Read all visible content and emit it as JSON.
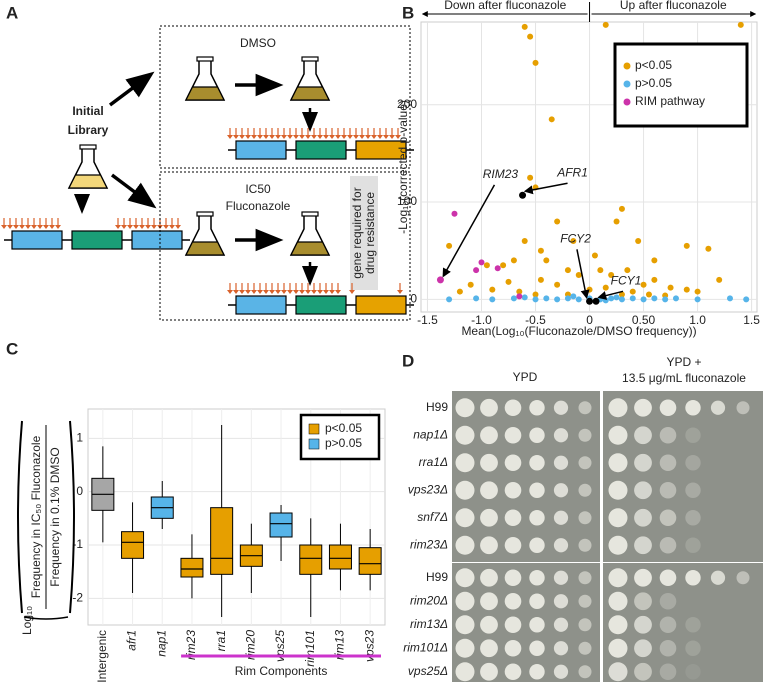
{
  "panel_labels": {
    "a": "A",
    "b": "B",
    "c": "C",
    "d": "D"
  },
  "panel_a": {
    "initial_library": [
      "Initial",
      "Library"
    ],
    "dmso": "DMSO",
    "ic50": [
      "IC50",
      "Fluconazole"
    ],
    "gene_note": [
      "gene required for",
      "drug resistance"
    ]
  },
  "chart_data": [
    {
      "type": "scatter",
      "xlabel": "Mean(Log₁₀(Fluconazole/DMSO frequency))",
      "ylabel": "-Log₁₀(corrected p-value)",
      "direction_labels": [
        "Down after fluconazole",
        "Up after fluconazole"
      ],
      "xlim": [
        -1.56,
        1.55
      ],
      "ylim": [
        -13,
        285
      ],
      "xticks": [
        -1.5,
        {
          "value": -1,
          "label": "-1.0"
        },
        -0.5,
        0,
        {
          "value": 0.5,
          "label": "0.50"
        },
        {
          "value": 1,
          "label": "1.0"
        },
        1.5
      ],
      "yticks": [
        0,
        100,
        200
      ],
      "grid": true,
      "legend": "top-right",
      "series": [
        {
          "name": "p<0.05",
          "color": "#e69f00",
          "x": [
            -0.6,
            -0.55,
            -0.5,
            -0.35,
            -0.55,
            -0.5,
            -0.3,
            0.3,
            0.25,
            0.9,
            1.1,
            -1.3,
            -0.95,
            -0.8,
            -0.7,
            -0.6,
            -0.45,
            -0.4,
            -0.2,
            -0.1,
            0.1,
            0.2,
            0.35,
            0.5,
            0.6,
            0.75,
            0.9,
            1.0,
            1.2,
            -1.1,
            -1.2,
            -0.9,
            -0.75,
            -0.3,
            0.0,
            0.15,
            0.4,
            -0.65,
            -0.5,
            -0.2,
            0.3,
            0.7,
            0.45,
            0.6,
            1.4,
            0.15,
            -0.45,
            0.05,
            -0.15,
            0.55
          ],
          "values": [
            280,
            270,
            243,
            185,
            125,
            115,
            80,
            93,
            80,
            55,
            52,
            55,
            35,
            35,
            40,
            60,
            50,
            40,
            30,
            25,
            30,
            25,
            30,
            15,
            20,
            12,
            10,
            8,
            20,
            15,
            8,
            10,
            18,
            15,
            10,
            12,
            8,
            8,
            5,
            5,
            5,
            4,
            60,
            40,
            282,
            282,
            20,
            45,
            60,
            5
          ]
        },
        {
          "name": "p>0.05",
          "color": "#56b4e9",
          "x": [
            -1.3,
            -1.05,
            -0.9,
            -0.7,
            -0.5,
            -0.4,
            -0.3,
            -0.2,
            -0.1,
            0.0,
            0.1,
            0.2,
            0.3,
            0.4,
            0.5,
            0.6,
            0.7,
            0.8,
            1.0,
            1.3,
            1.45,
            -0.6,
            0.25,
            -0.15,
            0.15
          ],
          "values": [
            0,
            1,
            0,
            1,
            0,
            1,
            0,
            1,
            0,
            1,
            0,
            1,
            0,
            1,
            0,
            1,
            0,
            1,
            0,
            1,
            0,
            2,
            2,
            3,
            -1
          ]
        },
        {
          "name": "RIM pathway",
          "color": "#cc33aa",
          "x": [
            -1.25,
            -1.05,
            -1.0,
            -0.85,
            -0.65
          ],
          "values": [
            88,
            30,
            38,
            32,
            3
          ]
        }
      ],
      "annotations": [
        {
          "text": "RIM23",
          "x": -1.38,
          "y": 20,
          "color": "#cc33aa"
        },
        {
          "text": "AFR1",
          "x": -0.62,
          "y": 107,
          "color": "#000000"
        },
        {
          "text": "FCY2",
          "x": 0.0,
          "y": -2,
          "color": "#000000"
        },
        {
          "text": "FCY1",
          "x": 0.06,
          "y": -2,
          "color": "#000000"
        }
      ]
    },
    {
      "type": "box",
      "ylabel": {
        "prefix": "Log₁₀",
        "numerator": "Frequency in IC₅₀ Fluconazole",
        "denominator": "Frequency in 0.1% DMSO"
      },
      "categories": [
        "Intergenic",
        "afr1",
        "nap1",
        "rim23",
        "rra1",
        "rim20",
        "vps25",
        "rim101",
        "rim13",
        "vps23"
      ],
      "colors": [
        "#a6a6a6",
        "#e69f00",
        "#56b4e9",
        "#e69f00",
        "#e69f00",
        "#e69f00",
        "#56b4e9",
        "#e69f00",
        "#e69f00",
        "#e69f00"
      ],
      "whisker_low": [
        -0.95,
        -1.9,
        -0.7,
        -2.0,
        -2.35,
        -1.9,
        -1.3,
        -2.35,
        -1.85,
        -1.85
      ],
      "q1": [
        -0.35,
        -1.25,
        -0.5,
        -1.6,
        -1.55,
        -1.4,
        -0.85,
        -1.55,
        -1.45,
        -1.55
      ],
      "median": [
        -0.05,
        -0.95,
        -0.3,
        -1.45,
        -1.25,
        -1.2,
        -0.6,
        -1.25,
        -1.25,
        -1.35
      ],
      "q3": [
        0.25,
        -0.75,
        -0.1,
        -1.25,
        -0.3,
        -1.0,
        -0.4,
        -1.0,
        -1.0,
        -1.05
      ],
      "whisker_high": [
        0.85,
        -0.2,
        0.2,
        -0.8,
        1.25,
        -0.6,
        -0.25,
        -0.5,
        -0.6,
        -0.7
      ],
      "ylim": [
        -2.5,
        1.55
      ],
      "yticks": [
        -2,
        -1,
        0,
        1
      ],
      "grid": true,
      "legend": "top-right",
      "legend_entries": [
        {
          "name": "p<0.05",
          "color": "#e69f00"
        },
        {
          "name": "p>0.05",
          "color": "#56b4e9"
        }
      ],
      "group": {
        "label": "Rim Components",
        "from": 3,
        "to": 9,
        "color": "#cc33cc"
      }
    }
  ],
  "panel_d": {
    "headers": {
      "ypd": "YPD",
      "flu": [
        "YPD +",
        "13.5 μg/mL fluconazole"
      ]
    },
    "plates": [
      [
        "H99",
        "nap1Δ",
        "rra1Δ",
        "vps23Δ",
        "snf7Δ",
        "rim23Δ"
      ],
      [
        "H99",
        "rim20Δ",
        "rim13Δ",
        "rim101Δ",
        "vps25Δ"
      ]
    ]
  }
}
